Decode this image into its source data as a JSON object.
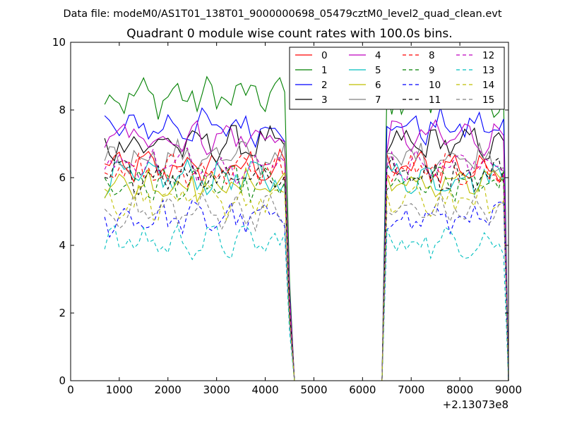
{
  "figure": {
    "suptitle": "Data file: modeM0/AS1T01_138T01_9000000698_05479cztM0_level2_quad_clean.evt"
  },
  "chart_data": {
    "type": "line",
    "title": "Quadrant 0 module wise count rates with 100.0s bins.",
    "xlabel": "",
    "ylabel": "",
    "xlim": [
      0,
      9000
    ],
    "ylim": [
      0,
      10
    ],
    "xticks": [
      "0",
      "1000",
      "2000",
      "3000",
      "4000",
      "5000",
      "6000",
      "7000",
      "8000",
      "9000"
    ],
    "yticks": [
      "0",
      "2",
      "4",
      "6",
      "8",
      "10"
    ],
    "x_offset_label": "+2.13073e8",
    "grid": false,
    "legend_position": "top-right",
    "legend_columns": 4,
    "x": [
      700,
      800,
      900,
      1000,
      1100,
      1200,
      1300,
      1400,
      1500,
      1600,
      1700,
      1800,
      1900,
      2000,
      2100,
      2200,
      2300,
      2400,
      2500,
      2600,
      2700,
      2800,
      2900,
      3000,
      3100,
      3200,
      3300,
      3400,
      3500,
      3600,
      3700,
      3800,
      3900,
      4000,
      4100,
      4200,
      4300,
      4400,
      4500,
      4600,
      4700,
      4800,
      4900,
      5000,
      5100,
      5200,
      5300,
      5400,
      5500,
      5600,
      5700,
      5800,
      5900,
      6000,
      6100,
      6200,
      6300,
      6400,
      6500,
      6600,
      6700,
      6800,
      6900,
      7000,
      7100,
      7200,
      7300,
      7400,
      7500,
      7600,
      7700,
      7800,
      7900,
      8000,
      8100,
      8200,
      8300,
      8400,
      8500,
      8600,
      8700,
      8800,
      8900,
      9000
    ],
    "on_intervals": [
      [
        700,
        4400
      ],
      [
        6500,
        8900
      ]
    ],
    "series": [
      {
        "name": "0",
        "color": "#ff0000",
        "dash": "solid",
        "level": 6.3
      },
      {
        "name": "1",
        "color": "#008000",
        "dash": "solid",
        "level": 8.4
      },
      {
        "name": "2",
        "color": "#0000ff",
        "dash": "solid",
        "level": 7.5
      },
      {
        "name": "3",
        "color": "#000000",
        "dash": "solid",
        "level": 7.0
      },
      {
        "name": "4",
        "color": "#bf00bf",
        "dash": "solid",
        "level": 7.2
      },
      {
        "name": "5",
        "color": "#00bfbf",
        "dash": "solid",
        "level": 6.0
      },
      {
        "name": "6",
        "color": "#bfbf00",
        "dash": "solid",
        "level": 5.8
      },
      {
        "name": "7",
        "color": "#808080",
        "dash": "solid",
        "level": 6.6
      },
      {
        "name": "8",
        "color": "#ff0000",
        "dash": "dashed",
        "level": 6.2
      },
      {
        "name": "9",
        "color": "#008000",
        "dash": "dashed",
        "level": 5.8
      },
      {
        "name": "10",
        "color": "#0000ff",
        "dash": "dashed",
        "level": 4.8
      },
      {
        "name": "11",
        "color": "#000000",
        "dash": "dashed",
        "level": 6.1
      },
      {
        "name": "12",
        "color": "#bf00bf",
        "dash": "dashed",
        "level": 6.4
      },
      {
        "name": "13",
        "color": "#00bfbf",
        "dash": "dashed",
        "level": 4.1
      },
      {
        "name": "14",
        "color": "#bfbf00",
        "dash": "dashed",
        "level": 5.3
      },
      {
        "name": "15",
        "color": "#808080",
        "dash": "dashed",
        "level": 5.0
      }
    ]
  }
}
